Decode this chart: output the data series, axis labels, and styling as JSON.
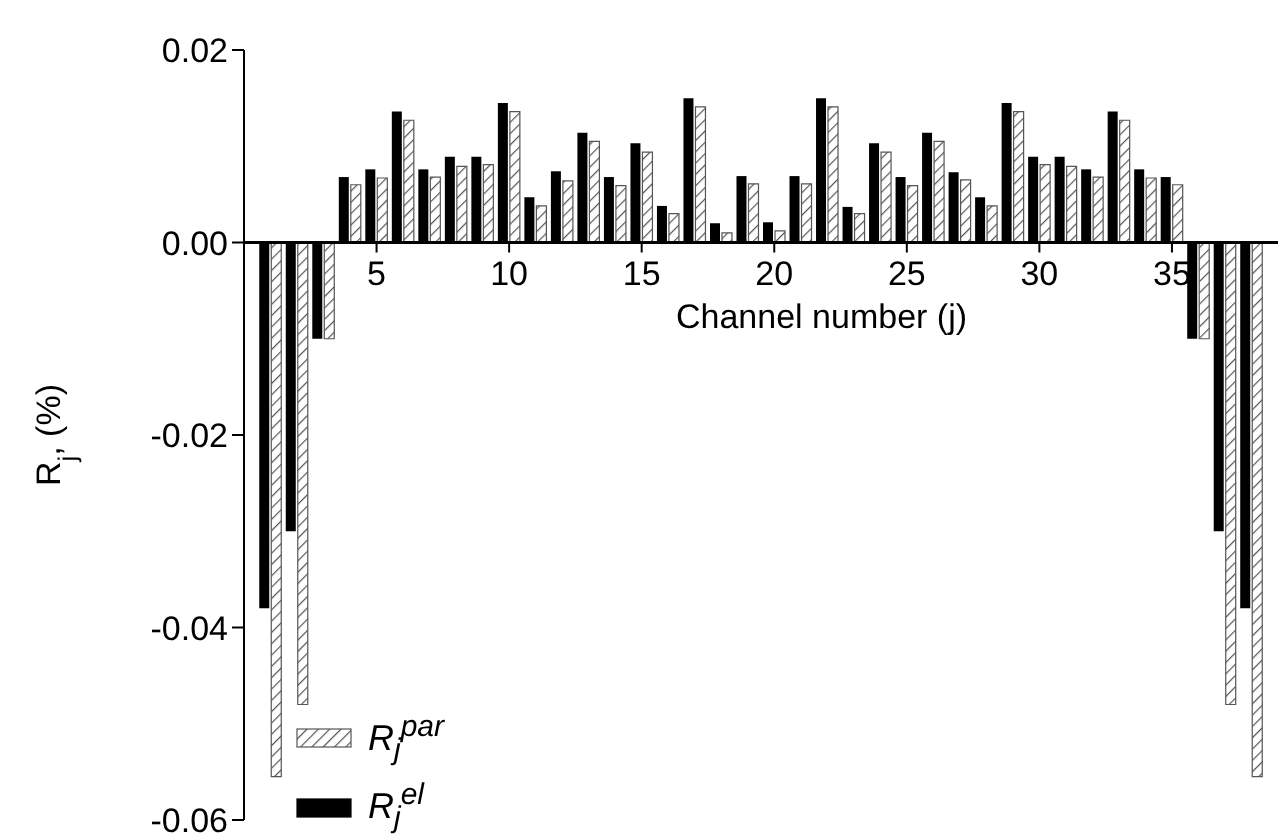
{
  "chart_data": {
    "type": "bar",
    "xlabel": "Channel number (j)",
    "ylabel": "R$_{j}$, (%)",
    "x": [
      1,
      2,
      3,
      4,
      5,
      6,
      7,
      8,
      9,
      10,
      11,
      12,
      13,
      14,
      15,
      16,
      17,
      18,
      19,
      20,
      21,
      22,
      23,
      24,
      25,
      26,
      27,
      28,
      29,
      30,
      31,
      32,
      33,
      34,
      35,
      36,
      37,
      38
    ],
    "series": [
      {
        "name": "R$_{j}$$^{el}$",
        "color": "#000000",
        "values": [
          -0.038,
          -0.03,
          -0.01,
          0.0068,
          0.0076,
          0.0136,
          0.0076,
          0.0089,
          0.0089,
          0.0145,
          0.0047,
          0.0074,
          0.0114,
          0.0068,
          0.0103,
          0.0038,
          0.015,
          0.002,
          0.0069,
          0.0021,
          0.0069,
          0.015,
          0.0037,
          0.0103,
          0.0068,
          0.0114,
          0.0073,
          0.0047,
          0.0145,
          0.0089,
          0.0089,
          0.0076,
          0.0136,
          0.0076,
          0.0068,
          -0.01,
          -0.03,
          -0.038
        ]
      },
      {
        "name": "R$_{j}$$^{par}$",
        "color": "#555555",
        "values": [
          -0.0555,
          -0.048,
          -0.01,
          0.006,
          0.0067,
          0.0127,
          0.0068,
          0.0079,
          0.0081,
          0.0136,
          0.0038,
          0.0064,
          0.0105,
          0.0059,
          0.0094,
          0.003,
          0.0141,
          0.001,
          0.0061,
          0.0012,
          0.0061,
          0.0141,
          0.003,
          0.0094,
          0.0059,
          0.0105,
          0.0065,
          0.0038,
          0.0136,
          0.0081,
          0.0079,
          0.0068,
          0.0127,
          0.0067,
          0.006,
          -0.01,
          -0.048,
          -0.0555
        ]
      }
    ],
    "xlim": [
      0,
      39
    ],
    "xticks": [
      5,
      10,
      15,
      20,
      25,
      30,
      35
    ],
    "ylim": [
      -0.06,
      0.02
    ],
    "yticks": [
      {
        "value": -0.06,
        "label": "-0.06"
      },
      {
        "value": -0.04,
        "label": "-0.04"
      },
      {
        "value": -0.02,
        "label": "-0.02"
      },
      {
        "value": 0,
        "label": "0.00"
      },
      {
        "value": 0.02,
        "label": "0.02"
      }
    ],
    "grid": false,
    "legend": "bottom left"
  }
}
